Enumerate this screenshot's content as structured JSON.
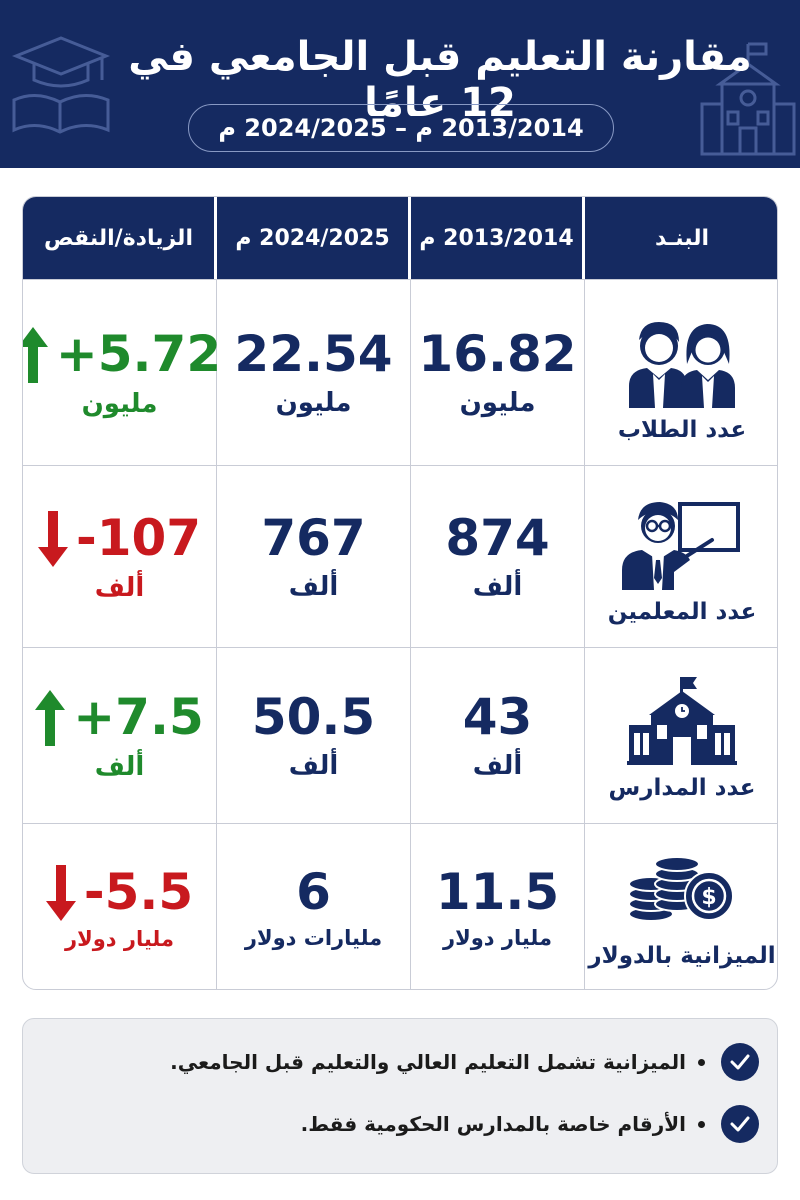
{
  "header": {
    "title": "مقارنة التعليم قبل الجامعي في 12 عامًا",
    "period": "2013/2014 م – 2024/2025 م"
  },
  "table": {
    "columns": {
      "item": "البنـد",
      "year1": "2013/2014 م",
      "year2": "2024/2025 م",
      "diff": "الزيادة/النقص"
    },
    "rows": [
      {
        "label": "عدد الطلاب",
        "icon": "students-icon",
        "year1": {
          "value": "16.82",
          "unit": "مليون"
        },
        "year2": {
          "value": "22.54",
          "unit": "مليون"
        },
        "diff": {
          "value": "+5.72",
          "unit": "مليون",
          "direction": "up"
        }
      },
      {
        "label": "عدد المعلمين",
        "icon": "teacher-icon",
        "year1": {
          "value": "874",
          "unit": "ألف"
        },
        "year2": {
          "value": "767",
          "unit": "ألف"
        },
        "diff": {
          "value": "-107",
          "unit": "ألف",
          "direction": "down"
        }
      },
      {
        "label": "عدد المدارس",
        "icon": "school-icon",
        "year1": {
          "value": "43",
          "unit": "ألف"
        },
        "year2": {
          "value": "50.5",
          "unit": "ألف"
        },
        "diff": {
          "value": "+7.5",
          "unit": "ألف",
          "direction": "up"
        }
      },
      {
        "label": "الميزانية بالدولار",
        "icon": "coins-dollar-icon",
        "year1": {
          "value": "11.5",
          "unit": "مليار دولار"
        },
        "year2": {
          "value": "6",
          "unit": "مليارات دولار"
        },
        "diff": {
          "value": "-5.5",
          "unit": "مليار دولار",
          "direction": "down"
        }
      }
    ]
  },
  "notes": [
    "الميزانية تشمل التعليم العالي والتعليم قبل الجامعي.",
    "الأرقام خاصة بالمدارس الحكومية فقط."
  ],
  "colors": {
    "navy": "#152a61",
    "increase": "#1f8a2c",
    "decrease": "#c8191e"
  }
}
